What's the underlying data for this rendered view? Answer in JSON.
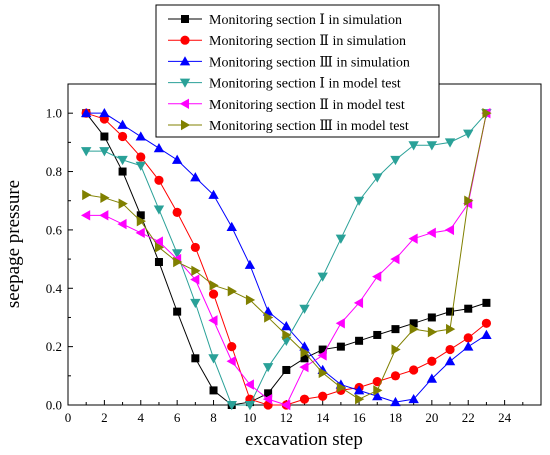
{
  "chart_data": {
    "type": "line",
    "title": "",
    "xlabel": "excavation step",
    "ylabel": "seepage pressure",
    "xlim": [
      0,
      26
    ],
    "ylim": [
      0,
      1.1
    ],
    "xticks": [
      0,
      2,
      4,
      6,
      8,
      10,
      12,
      14,
      16,
      18,
      20,
      22,
      24
    ],
    "yticks": [
      0.0,
      0.2,
      0.4,
      0.6,
      0.8,
      1.0
    ],
    "xtick_labels": [
      "0",
      "2",
      "4",
      "6",
      "8",
      "10",
      "12",
      "14",
      "16",
      "18",
      "20",
      "22",
      "24"
    ],
    "ytick_labels": [
      "0.0",
      "0.2",
      "0.4",
      "0.6",
      "0.8",
      "1.0"
    ],
    "legend_position": "top",
    "grid": false,
    "series": [
      {
        "name": "Monitoring section Ⅰ in simulation",
        "color": "#000000",
        "marker": "square",
        "points": [
          [
            1,
            1.0
          ],
          [
            2,
            0.92
          ],
          [
            3,
            0.8
          ],
          [
            4,
            0.65
          ],
          [
            5,
            0.49
          ],
          [
            6,
            0.32
          ],
          [
            7,
            0.16
          ],
          [
            8,
            0.05
          ],
          [
            9,
            0.0
          ],
          [
            10,
            0.01
          ],
          [
            11,
            0.04
          ],
          [
            12,
            0.12
          ],
          [
            13,
            0.16
          ],
          [
            14,
            0.19
          ],
          [
            15,
            0.2
          ],
          [
            16,
            0.22
          ],
          [
            17,
            0.24
          ],
          [
            18,
            0.26
          ],
          [
            19,
            0.28
          ],
          [
            20,
            0.3
          ],
          [
            21,
            0.32
          ],
          [
            22,
            0.33
          ],
          [
            23,
            0.35
          ]
        ]
      },
      {
        "name": "Monitoring section Ⅱ in simulation",
        "color": "#ff0000",
        "marker": "circle",
        "points": [
          [
            1,
            1.0
          ],
          [
            2,
            0.98
          ],
          [
            3,
            0.92
          ],
          [
            4,
            0.85
          ],
          [
            5,
            0.77
          ],
          [
            6,
            0.66
          ],
          [
            7,
            0.54
          ],
          [
            8,
            0.38
          ],
          [
            9,
            0.2
          ],
          [
            10,
            0.02
          ],
          [
            11,
            0.0
          ],
          [
            12,
            0.0
          ],
          [
            13,
            0.02
          ],
          [
            14,
            0.03
          ],
          [
            15,
            0.05
          ],
          [
            16,
            0.06
          ],
          [
            17,
            0.08
          ],
          [
            18,
            0.1
          ],
          [
            19,
            0.12
          ],
          [
            20,
            0.15
          ],
          [
            21,
            0.19
          ],
          [
            22,
            0.23
          ],
          [
            23,
            0.28
          ]
        ]
      },
      {
        "name": "Monitoring section Ⅲ in simulation",
        "color": "#0000ff",
        "marker": "triangle-up",
        "points": [
          [
            1,
            1.0
          ],
          [
            2,
            1.0
          ],
          [
            3,
            0.96
          ],
          [
            4,
            0.92
          ],
          [
            5,
            0.88
          ],
          [
            6,
            0.84
          ],
          [
            7,
            0.78
          ],
          [
            8,
            0.72
          ],
          [
            9,
            0.61
          ],
          [
            10,
            0.48
          ],
          [
            11,
            0.32
          ],
          [
            12,
            0.27
          ],
          [
            13,
            0.2
          ],
          [
            14,
            0.12
          ],
          [
            15,
            0.07
          ],
          [
            16,
            0.05
          ],
          [
            17,
            0.03
          ],
          [
            18,
            0.01
          ],
          [
            19,
            0.02
          ],
          [
            20,
            0.09
          ],
          [
            21,
            0.15
          ],
          [
            22,
            0.2
          ],
          [
            23,
            0.24
          ]
        ]
      },
      {
        "name": "Monitoring section Ⅰ in model test",
        "color": "#2aa198",
        "marker": "triangle-down",
        "points": [
          [
            1,
            0.87
          ],
          [
            2,
            0.87
          ],
          [
            3,
            0.84
          ],
          [
            4,
            0.82
          ],
          [
            5,
            0.67
          ],
          [
            6,
            0.52
          ],
          [
            7,
            0.35
          ],
          [
            8,
            0.16
          ],
          [
            9,
            0.0
          ],
          [
            10,
            0.0
          ],
          [
            11,
            0.13
          ],
          [
            12,
            0.22
          ],
          [
            13,
            0.33
          ],
          [
            14,
            0.44
          ],
          [
            15,
            0.57
          ],
          [
            16,
            0.7
          ],
          [
            17,
            0.78
          ],
          [
            18,
            0.84
          ],
          [
            19,
            0.89
          ],
          [
            20,
            0.89
          ],
          [
            21,
            0.9
          ],
          [
            22,
            0.93
          ],
          [
            23,
            1.0
          ]
        ]
      },
      {
        "name": "Monitoring section Ⅱ in model test",
        "color": "#ff00ff",
        "marker": "triangle-left",
        "points": [
          [
            1,
            0.65
          ],
          [
            2,
            0.65
          ],
          [
            3,
            0.62
          ],
          [
            4,
            0.59
          ],
          [
            5,
            0.56
          ],
          [
            6,
            0.5
          ],
          [
            7,
            0.43
          ],
          [
            8,
            0.29
          ],
          [
            9,
            0.15
          ],
          [
            10,
            0.07
          ],
          [
            11,
            0.02
          ],
          [
            12,
            0.0
          ],
          [
            13,
            0.13
          ],
          [
            14,
            0.17
          ],
          [
            15,
            0.28
          ],
          [
            16,
            0.35
          ],
          [
            17,
            0.44
          ],
          [
            18,
            0.5
          ],
          [
            19,
            0.57
          ],
          [
            20,
            0.59
          ],
          [
            21,
            0.6
          ],
          [
            22,
            0.69
          ],
          [
            23,
            1.0
          ]
        ]
      },
      {
        "name": "Monitoring section Ⅲ in model test",
        "color": "#808000",
        "marker": "triangle-right",
        "points": [
          [
            1,
            0.72
          ],
          [
            2,
            0.71
          ],
          [
            3,
            0.69
          ],
          [
            4,
            0.63
          ],
          [
            5,
            0.54
          ],
          [
            6,
            0.49
          ],
          [
            7,
            0.46
          ],
          [
            8,
            0.41
          ],
          [
            9,
            0.39
          ],
          [
            10,
            0.36
          ],
          [
            11,
            0.3
          ],
          [
            12,
            0.24
          ],
          [
            13,
            0.18
          ],
          [
            14,
            0.11
          ],
          [
            15,
            0.06
          ],
          [
            16,
            0.02
          ],
          [
            17,
            0.05
          ],
          [
            18,
            0.19
          ],
          [
            19,
            0.26
          ],
          [
            20,
            0.25
          ],
          [
            21,
            0.26
          ],
          [
            22,
            0.7
          ],
          [
            23,
            1.0
          ]
        ]
      }
    ]
  }
}
